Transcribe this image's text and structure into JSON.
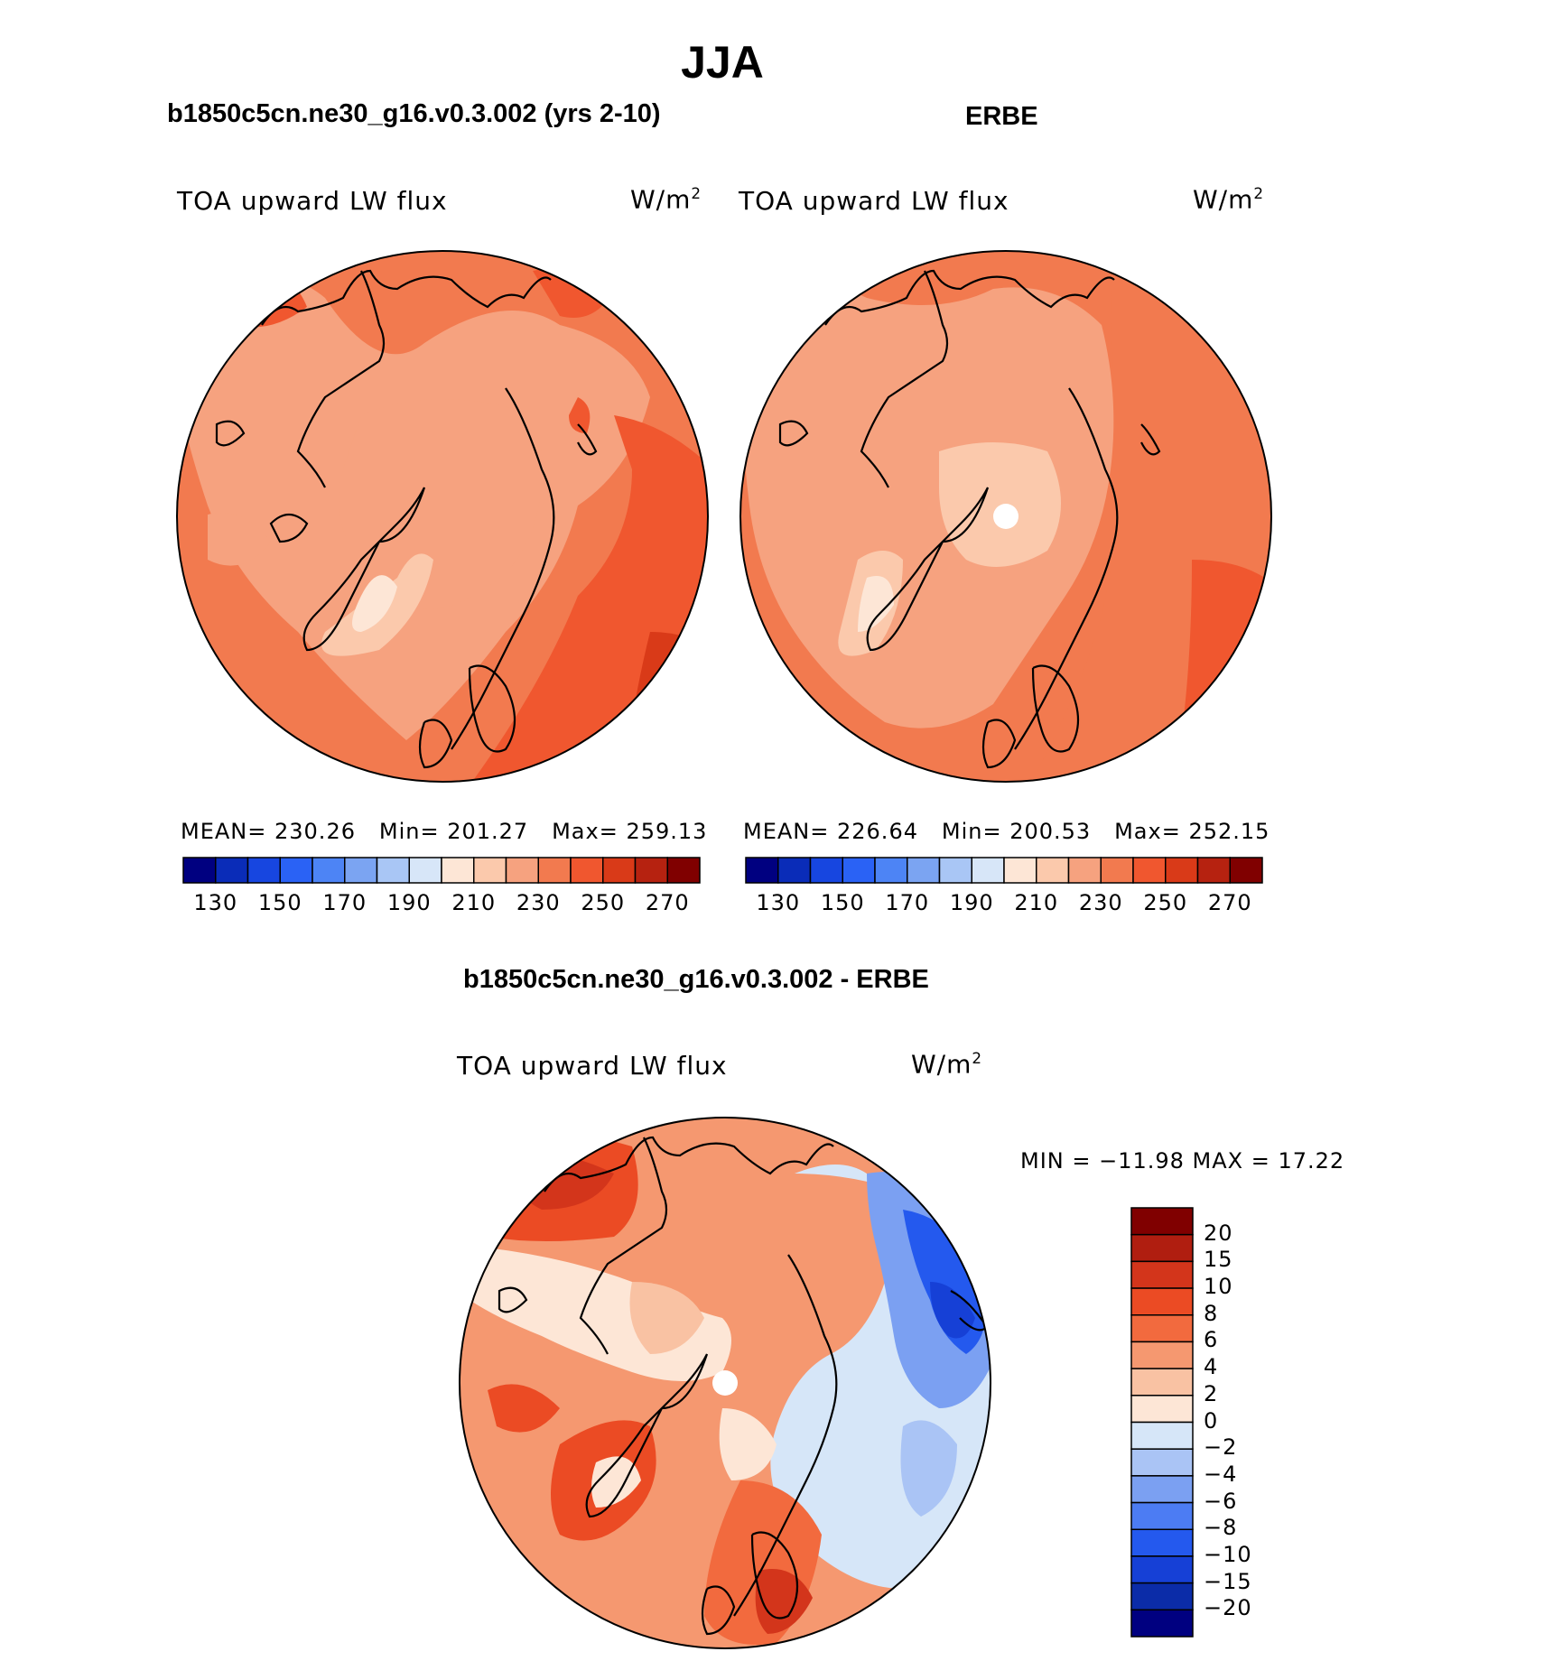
{
  "figure": {
    "title": "JJA",
    "panel_left_title": "b1850c5cn.ne30_g16.v0.3.002 (yrs 2-10)",
    "panel_right_title": "ERBE",
    "panel_bottom_title": "b1850c5cn.ne30_g16.v0.3.002 - ERBE"
  },
  "colors": {
    "abs_scale": [
      "#000080",
      "#0a2cb8",
      "#1746e0",
      "#2a62f5",
      "#4d84f5",
      "#7ba4f2",
      "#a9c6f5",
      "#d7e6f8",
      "#fde6d6",
      "#fbc9ac",
      "#f6a27f",
      "#f27a4f",
      "#f0572f",
      "#d93a18",
      "#b62210",
      "#800000"
    ],
    "diff_scale": [
      "#000080",
      "#0b2ca8",
      "#1640d6",
      "#2459ee",
      "#4c7cf3",
      "#7ba0f2",
      "#aac4f5",
      "#d6e6f8",
      "#fde6d6",
      "#f9c2a3",
      "#f59870",
      "#f26a3e",
      "#eb4b24",
      "#d3351b",
      "#b01e10",
      "#800000"
    ]
  },
  "chart_data": [
    {
      "type": "heatmap",
      "projection": "polar stereographic (North Pole)",
      "title": "b1850c5cn.ne30_g16.v0.3.002 (yrs 2-10)",
      "left_label": "TOA upward LW flux",
      "units": "W/m",
      "units_sup": "2",
      "stats": {
        "mean_label": "MEAN=",
        "mean": "230.26",
        "min_label": "Min=",
        "min": "201.27",
        "max_label": "Max=",
        "max": "259.13"
      },
      "colorbar_ticks": [
        "130",
        "150",
        "170",
        "190",
        "210",
        "230",
        "250",
        "270"
      ],
      "colorbar_levels": [
        130,
        140,
        150,
        160,
        170,
        180,
        190,
        200,
        210,
        220,
        230,
        240,
        250,
        260,
        270
      ]
    },
    {
      "type": "heatmap",
      "projection": "polar stereographic (North Pole)",
      "title": "ERBE",
      "left_label": "TOA upward LW flux",
      "units": "W/m",
      "units_sup": "2",
      "stats": {
        "mean_label": "MEAN=",
        "mean": "226.64",
        "min_label": "Min=",
        "min": "200.53",
        "max_label": "Max=",
        "max": "252.15"
      },
      "colorbar_ticks": [
        "130",
        "150",
        "170",
        "190",
        "210",
        "230",
        "250",
        "270"
      ],
      "colorbar_levels": [
        130,
        140,
        150,
        160,
        170,
        180,
        190,
        200,
        210,
        220,
        230,
        240,
        250,
        260,
        270
      ]
    },
    {
      "type": "heatmap",
      "projection": "polar stereographic (North Pole)",
      "title": "b1850c5cn.ne30_g16.v0.3.002 - ERBE",
      "left_label": "TOA upward LW flux",
      "units": "W/m",
      "units_sup": "2",
      "stats": {
        "text": "MIN = −11.98 MAX =   17.22",
        "min": -11.98,
        "max": 17.22
      },
      "colorbar_ticks": [
        "20",
        "15",
        "10",
        "8",
        "6",
        "4",
        "2",
        "0",
        "−2",
        "−4",
        "−6",
        "−8",
        "−10",
        "−15",
        "−20"
      ]
    }
  ]
}
